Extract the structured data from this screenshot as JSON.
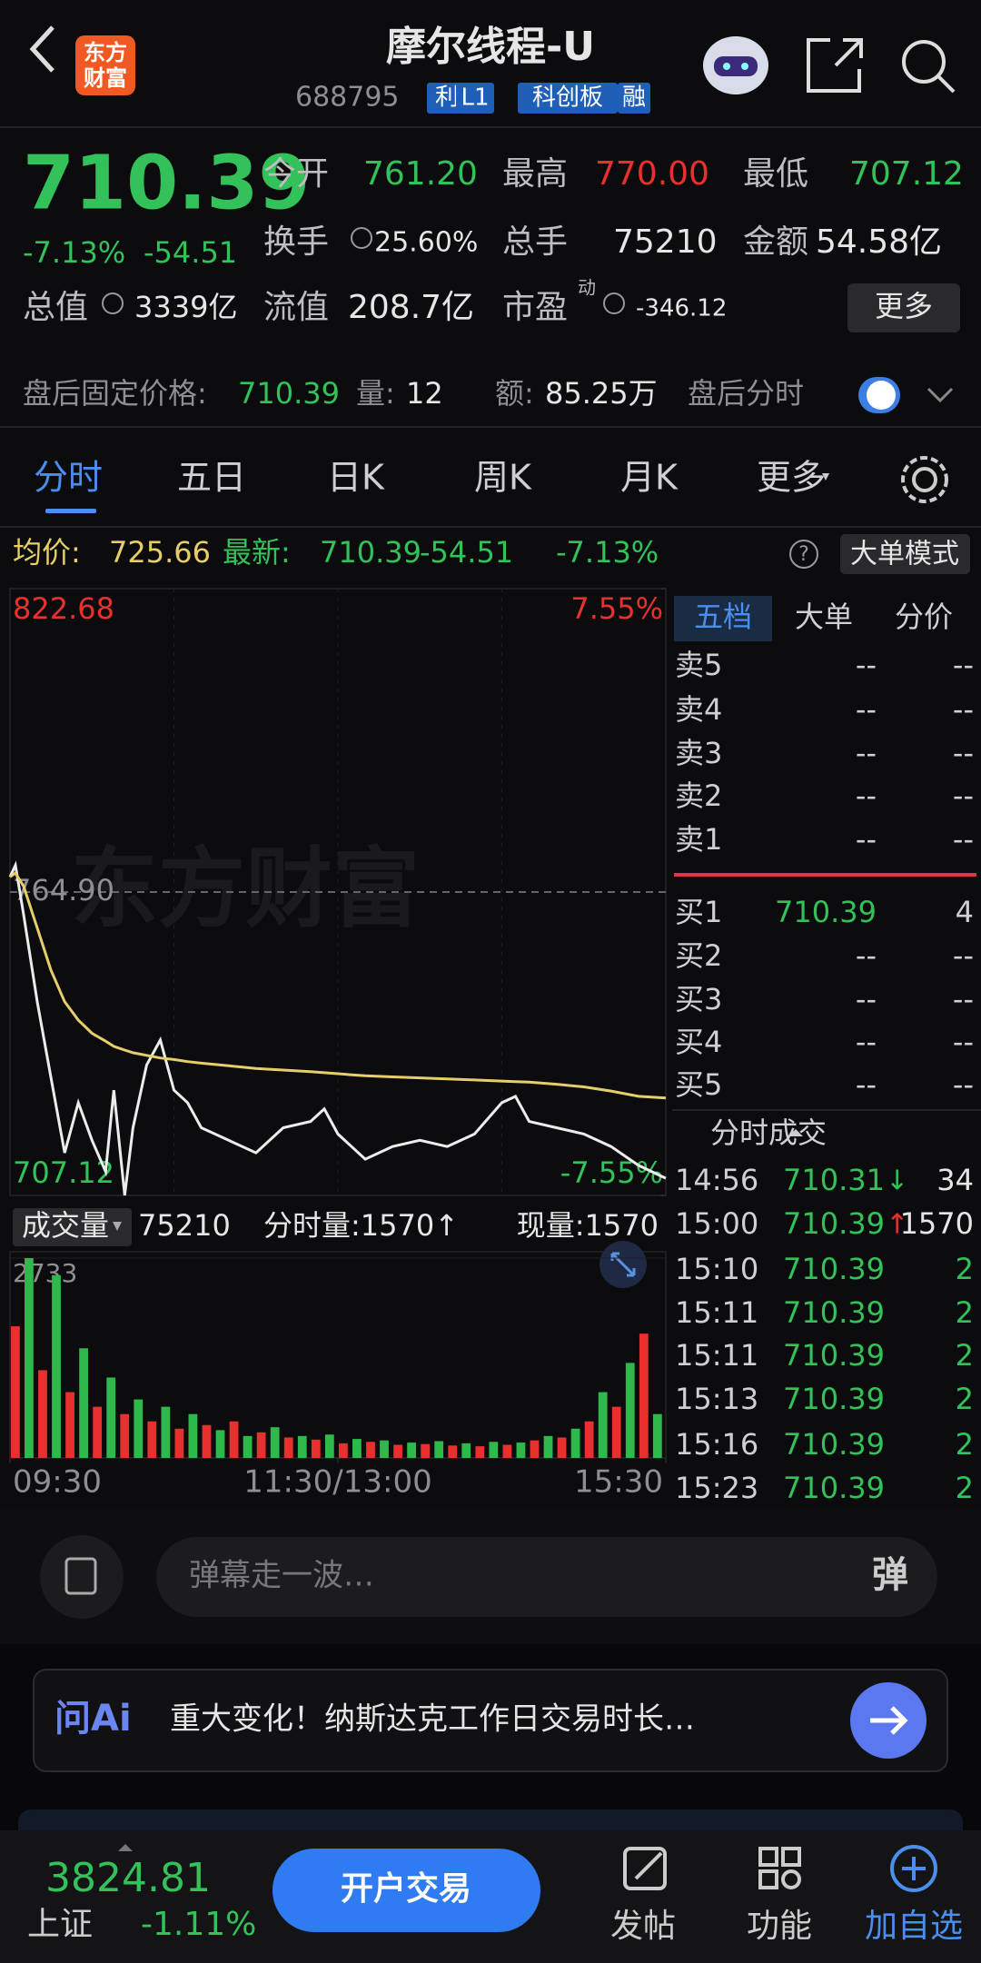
{
  "header": {
    "title": "摩尔线程-U",
    "logo": [
      "东方",
      "财富"
    ],
    "code": "688795",
    "tags": [
      "利",
      "L1",
      "科创板",
      "融"
    ]
  },
  "quote": {
    "price": "710.39",
    "change_pct": "-7.13%",
    "change": "-54.51",
    "stats": [
      {
        "label": "今开",
        "value": "761.20"
      },
      {
        "label": "最高",
        "value": "770.00"
      },
      {
        "label": "最低",
        "value": "707.12"
      },
      {
        "label": "换手",
        "value": "25.60%"
      },
      {
        "label": "总手",
        "value": "75210"
      },
      {
        "label": "金额",
        "value": "54.58亿"
      },
      {
        "label": "总值",
        "value": "3339亿"
      },
      {
        "label": "流值",
        "value": "208.7亿"
      },
      {
        "label": "市盈",
        "value": "-346.12"
      }
    ],
    "pe_tag": "动",
    "more": "更多"
  },
  "after_hours": {
    "label": "盘后固定价格:",
    "price": "710.39",
    "vol_label": "量:",
    "vol": "12",
    "amount_label": "额:",
    "amount": "85.25万",
    "toggle": "盘后分时"
  },
  "tabs": [
    "分时",
    "五日",
    "日K",
    "周K",
    "月K",
    "更多"
  ],
  "info": {
    "avg_label": "均价:",
    "avg": "725.66",
    "last_label": "最新:",
    "last": "710.39",
    "change": "-54.51",
    "change_pct": "-7.13%",
    "help": "?",
    "mode": "大单模式"
  },
  "watermark": "东方财富",
  "chart_data": [
    {
      "type": "line",
      "grid": true,
      "x": [
        0,
        2,
        5,
        10,
        15,
        20,
        25,
        30,
        35,
        38,
        42,
        45,
        50,
        55,
        60,
        65,
        70,
        80,
        90,
        100,
        110,
        115,
        120,
        125,
        130,
        140,
        150,
        160,
        170,
        180,
        185,
        190,
        200,
        210,
        220,
        230,
        240
      ],
      "series": [
        {
          "color": "#ececec",
          "values": [
            767.77,
            770.0,
            760.6,
            743.89,
            729.56,
            715.23,
            724.78,
            717.62,
            711.65,
            727.17,
            707.12,
            720.01,
            731.95,
            736.72,
            727.17,
            724.78,
            720.01,
            717.62,
            715.23,
            720.01,
            721.2,
            723.59,
            718.81,
            716.42,
            714.03,
            716.42,
            717.62,
            716.42,
            718.81,
            724.78,
            725.97,
            721.2,
            720.01,
            718.81,
            716.42,
            712.84,
            710.39
          ]
        },
        {
          "color": "#e6cf6a",
          "values": [
            767.77,
            768.5,
            766.0,
            758.0,
            750.0,
            744.0,
            740.5,
            738.0,
            736.5,
            735.5,
            734.8,
            734.3,
            733.8,
            733.3,
            733.0,
            732.6,
            732.3,
            731.8,
            731.3,
            731.0,
            730.7,
            730.5,
            730.3,
            730.1,
            729.9,
            729.7,
            729.5,
            729.3,
            729.1,
            728.9,
            728.8,
            728.7,
            728.3,
            727.8,
            727.0,
            726.0,
            725.66
          ]
        }
      ],
      "xlim": [
        0,
        240
      ],
      "ylim": [
        707.12,
        822.68
      ],
      "yticks": [
        822.68,
        {
          "value": 764.9,
          "label": "764.90"
        },
        707.12
      ],
      "y2lim": [
        -7.55,
        7.55
      ],
      "y2ticks": [
        {
          "value": 7.55,
          "label": "7.55%"
        },
        {
          "value": -7.55,
          "label": "-7.55%"
        }
      ]
    },
    {
      "type": "bar",
      "x": [
        0,
        5,
        10,
        15,
        20,
        25,
        30,
        35,
        40,
        45,
        50,
        55,
        60,
        65,
        70,
        75,
        80,
        85,
        90,
        95,
        100,
        105,
        110,
        115,
        120,
        125,
        130,
        135,
        140,
        145,
        150,
        155,
        160,
        165,
        170,
        175,
        180,
        185,
        190,
        195,
        200,
        205,
        210,
        215,
        220,
        225,
        230,
        235
      ],
      "values": [
        1800,
        2733,
        1200,
        2500,
        900,
        1500,
        700,
        1100,
        600,
        800,
        500,
        700,
        400,
        600,
        450,
        380,
        500,
        300,
        350,
        420,
        280,
        300,
        250,
        320,
        200,
        260,
        220,
        240,
        180,
        210,
        190,
        230,
        170,
        200,
        160,
        220,
        180,
        210,
        240,
        300,
        280,
        400,
        500,
        900,
        700,
        1300,
        1700,
        600
      ],
      "colors": [
        "#e8312f",
        "#2fb84c",
        "#e8312f",
        "#2fb84c",
        "#e8312f",
        "#2fb84c",
        "#e8312f",
        "#2fb84c",
        "#e8312f",
        "#2fb84c",
        "#e8312f",
        "#2fb84c",
        "#e8312f",
        "#2fb84c",
        "#e8312f",
        "#2fb84c",
        "#e8312f",
        "#2fb84c",
        "#e8312f",
        "#2fb84c",
        "#e8312f",
        "#2fb84c",
        "#e8312f",
        "#2fb84c",
        "#e8312f",
        "#2fb84c",
        "#e8312f",
        "#2fb84c",
        "#e8312f",
        "#2fb84c",
        "#e8312f",
        "#2fb84c",
        "#e8312f",
        "#2fb84c",
        "#e8312f",
        "#2fb84c",
        "#e8312f",
        "#2fb84c",
        "#e8312f",
        "#2fb84c",
        "#e8312f",
        "#2fb84c",
        "#e8312f",
        "#2fb84c",
        "#e8312f",
        "#2fb84c",
        "#e8312f",
        "#2fb84c"
      ],
      "xlim": [
        0,
        240
      ],
      "ylim": [
        0,
        2733
      ],
      "yticks": [
        2733
      ],
      "xticks": [
        {
          "value": 0,
          "label": "09:30"
        },
        {
          "value": 120,
          "label": "11:30/13:00"
        },
        {
          "value": 240,
          "label": "15:30"
        }
      ]
    }
  ],
  "volume_header": {
    "label": "成交量",
    "total": "75210",
    "minute": "分时量:1570↑",
    "current": "现量:1570"
  },
  "order_book": {
    "tabs": [
      "五档",
      "大单",
      "分价"
    ],
    "asks": [
      [
        "卖5",
        "--",
        "--"
      ],
      [
        "卖4",
        "--",
        "--"
      ],
      [
        "卖3",
        "--",
        "--"
      ],
      [
        "卖2",
        "--",
        "--"
      ],
      [
        "卖1",
        "--",
        "--"
      ]
    ],
    "bids": [
      [
        "买1",
        "710.39",
        "4"
      ],
      [
        "买2",
        "--",
        "--"
      ],
      [
        "买3",
        "--",
        "--"
      ],
      [
        "买4",
        "--",
        "--"
      ],
      [
        "买5",
        "--",
        "--"
      ]
    ]
  },
  "trades": {
    "title": "分时成交",
    "rows": [
      {
        "time": "14:56",
        "price": "710.31",
        "dir": "↓",
        "vol": "34"
      },
      {
        "time": "15:00",
        "price": "710.39",
        "dir": "↑",
        "vol": "1570"
      },
      {
        "time": "15:10",
        "price": "710.39",
        "vol": "2"
      },
      {
        "time": "15:11",
        "price": "710.39",
        "vol": "2"
      },
      {
        "time": "15:11",
        "price": "710.39",
        "vol": "2"
      },
      {
        "time": "15:13",
        "price": "710.39",
        "vol": "2"
      },
      {
        "time": "15:16",
        "price": "710.39",
        "vol": "2"
      },
      {
        "time": "15:23",
        "price": "710.39",
        "vol": "2"
      }
    ]
  },
  "danmaku": {
    "placeholder": "弹幕走一波…",
    "button": "弹"
  },
  "ai": {
    "brand": "问Ai",
    "text": "重大变化！纳斯达克工作日交易时长…"
  },
  "footer": {
    "index_value": "3824.81",
    "index_name": "上证",
    "index_change": "-1.11%",
    "cta": "开户交易",
    "nav": [
      "发帖",
      "功能",
      "加自选"
    ]
  }
}
